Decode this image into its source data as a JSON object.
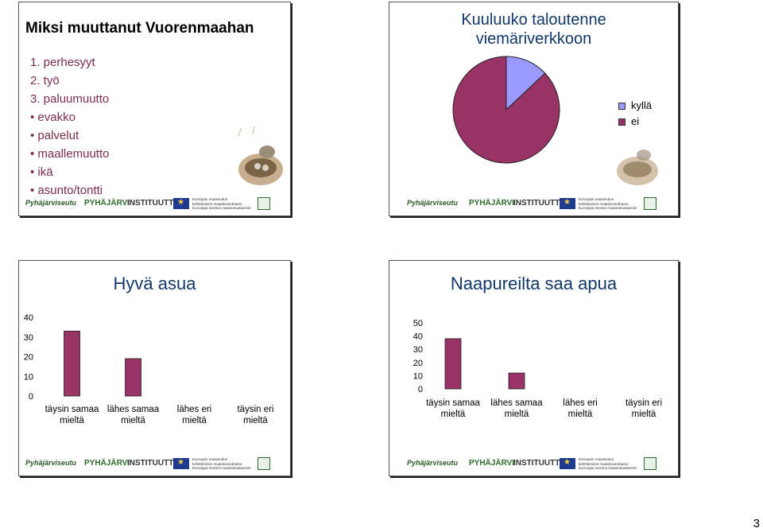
{
  "page_number": "3",
  "footer": {
    "logo_pyhajarviseutu": "Pyhäjärviseutu",
    "logo_pyhajarvi": "PYHÄJÄRVI",
    "logo_instituutti": "INSTITUUTTI",
    "eu_line1": "Euroopan maaseudun",
    "eu_line2": "kehittämisen maatalousrahasto:",
    "eu_line3": "Eurooppa investoi maaseutualueisiin"
  },
  "slide1": {
    "title": "Miksi muuttanut Vuorenmaahan",
    "items": [
      "1. perhesyyt",
      "2. työ",
      "3. paluumuutto",
      "• evakko",
      "• palvelut",
      "• maallemuutto",
      "• ikä",
      "• asunto/tontti"
    ]
  },
  "slide2": {
    "title_line1": "Kuuluuko taloutenne",
    "title_line2": "viemäriverkkoon",
    "chart_data": {
      "type": "pie",
      "categories": [
        "kyllä",
        "ei"
      ],
      "values": [
        13,
        87
      ],
      "colors": [
        "#9999ff",
        "#993366"
      ],
      "legend_position": "right"
    }
  },
  "slide3": {
    "chart_data": {
      "type": "bar",
      "title": "Hyvä asua",
      "categories": [
        "täysin samaa mieltä",
        "lähes samaa mieltä",
        "lähes eri mieltä",
        "täysin eri mieltä"
      ],
      "tick_labels": [
        [
          "täysin samaa",
          "mieltä"
        ],
        [
          "lähes samaa",
          "mieltä"
        ],
        [
          "lähes eri",
          "mieltä"
        ],
        [
          "täysin eri",
          "mieltä"
        ]
      ],
      "values": [
        33,
        19,
        0,
        0
      ],
      "ylim": [
        0,
        40
      ],
      "yticks": [
        "0",
        "10",
        "20",
        "30",
        "40"
      ],
      "bar_color": "#993366"
    }
  },
  "slide4": {
    "chart_data": {
      "type": "bar",
      "title": "Naapureilta saa apua",
      "categories": [
        "täysin samaa mieltä",
        "lähes samaa mieltä",
        "lähes eri mieltä",
        "täysin eri mieltä"
      ],
      "tick_labels": [
        [
          "täysin samaa",
          "mieltä"
        ],
        [
          "lähes samaa",
          "mieltä"
        ],
        [
          "lähes eri",
          "mieltä"
        ],
        [
          "täysin eri",
          "mieltä"
        ]
      ],
      "values": [
        38,
        12,
        0,
        0
      ],
      "ylim": [
        0,
        50
      ],
      "yticks": [
        "0",
        "10",
        "20",
        "30",
        "40",
        "50"
      ],
      "bar_color": "#993366"
    }
  }
}
